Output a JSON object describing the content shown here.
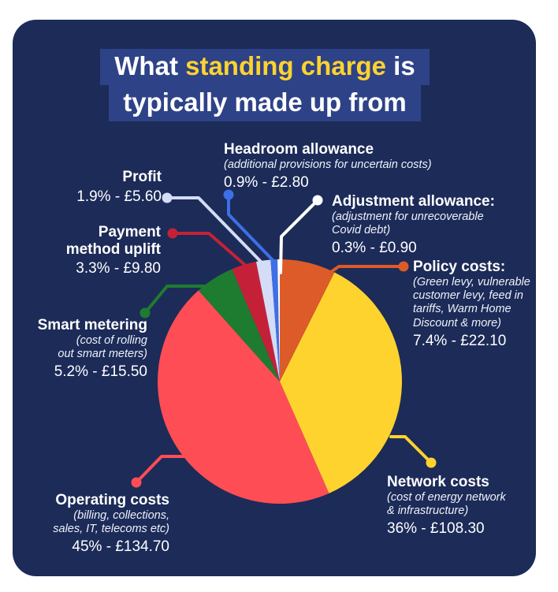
{
  "page": {
    "background_color": "#ffffff",
    "card_color": "#1C2B58"
  },
  "title": {
    "line1_pre": "What ",
    "line1_highlight": "standing charge",
    "line1_post": " is",
    "line2": "typically made up from",
    "box_color": "#2E4287",
    "highlight_color": "#FFD32E"
  },
  "chart_data": {
    "type": "pie",
    "title": "What standing charge is typically made up from",
    "start_angle_deg_from_top": 0,
    "direction": "clockwise",
    "legend_position": "around-pie-with-leader-lines",
    "segments": [
      {
        "id": "policy",
        "label": "Policy costs:",
        "sublabel": "(Green levy, vulnerable customer levy, feed in tariffs, Warm Home Discount & more)",
        "percent": 7.4,
        "amount_gbp": "£22.10",
        "color": "#DC5B28"
      },
      {
        "id": "network",
        "label": "Network costs",
        "sublabel": "(cost of energy network & infrastructure)",
        "percent": 36,
        "amount_gbp": "£108.30",
        "color": "#FFD32E"
      },
      {
        "id": "operating",
        "label": "Operating costs",
        "sublabel": "(billing, collections, sales, IT, telecoms etc)",
        "percent": 45,
        "amount_gbp": "£134.70",
        "color": "#FF4D55"
      },
      {
        "id": "smart",
        "label": "Smart metering",
        "sublabel": "(cost of rolling out smart meters)",
        "percent": 5.2,
        "amount_gbp": "£15.50",
        "color": "#1E7C31"
      },
      {
        "id": "payment",
        "label": "Payment method uplift",
        "sublabel": "",
        "percent": 3.3,
        "amount_gbp": "£9.80",
        "color": "#C42138"
      },
      {
        "id": "profit",
        "label": "Profit",
        "sublabel": "",
        "percent": 1.9,
        "amount_gbp": "£5.60",
        "color": "#D4DCF6"
      },
      {
        "id": "headroom",
        "label": "Headroom allowance",
        "sublabel": "(additional provisions for uncertain costs)",
        "percent": 0.9,
        "amount_gbp": "£2.80",
        "color": "#3D6FE8"
      },
      {
        "id": "adjustment",
        "label": "Adjustment allowance:",
        "sublabel": "(adjustment for unrecoverable Covid debt)",
        "percent": 0.3,
        "amount_gbp": "£0.90",
        "color": "#FFFFFF"
      }
    ]
  },
  "labels": {
    "profit": {
      "name": "Profit",
      "value": "1.9% - £5.60"
    },
    "headroom": {
      "name": "Headroom allowance",
      "sub1": "(additional provisions for uncertain costs)",
      "value": "0.9% - £2.80"
    },
    "adjustment": {
      "name": "Adjustment allowance:",
      "sub1": "(adjustment for unrecoverable",
      "sub2": "Covid debt)",
      "value": "0.3% - £0.90"
    },
    "policy": {
      "name": "Policy costs:",
      "sub1": "(Green levy, vulnerable",
      "sub2": "customer levy, feed in",
      "sub3": "tariffs, Warm Home",
      "sub4": "Discount & more)",
      "value": "7.4% - £22.10"
    },
    "smart": {
      "name": "Smart metering",
      "sub1": "(cost of rolling",
      "sub2": "out smart meters)",
      "value": "5.2% - £15.50"
    },
    "payment": {
      "name1": "Payment",
      "name2": "method uplift",
      "value": "3.3% - £9.80"
    },
    "operating": {
      "name": "Operating costs",
      "sub1": "(billing, collections,",
      "sub2": "sales, IT, telecoms etc)",
      "value": "45% - £134.70"
    },
    "network": {
      "name": "Network costs",
      "sub1": "(cost of energy network",
      "sub2": "& infrastructure)",
      "value": "36% - £108.30"
    }
  }
}
